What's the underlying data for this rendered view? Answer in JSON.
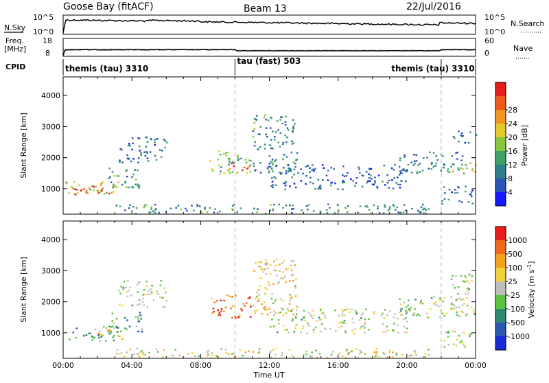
{
  "header": {
    "station": "Goose Bay (fitACF)",
    "beam": "Beam 13",
    "date": "22/Jul/2016"
  },
  "noise_panel": {
    "left_label": "N.Sky",
    "left_ticks": [
      "10^5",
      "10^0"
    ],
    "right_ticks": [
      "10^5",
      "10^0"
    ],
    "right_label": "N.Search"
  },
  "freq_panel": {
    "left_label_line1": "Freq.",
    "left_label_line2": "[MHz]",
    "left_ticks": [
      "18",
      "8"
    ],
    "right_ticks": [
      "60",
      "0"
    ],
    "right_label": "Nave"
  },
  "cpid_panel": {
    "label": "CPID",
    "segments": [
      {
        "text": "themis (tau) 3310",
        "start_h": 0,
        "end_h": 10
      },
      {
        "text": "tau (fast) 503",
        "start_h": 10,
        "end_h": 22
      },
      {
        "text": "themis (tau) 3310",
        "start_h": 22,
        "end_h": 24
      }
    ]
  },
  "x_axis": {
    "label": "Time UT",
    "ticks": [
      "00:00",
      "04:00",
      "08:00",
      "12:00",
      "16:00",
      "20:00",
      "00:00"
    ]
  },
  "chart_data": [
    {
      "type": "heatmap",
      "title": "Power",
      "ylabel": "Slant Range [km]",
      "xlabel": "",
      "xlim": [
        0,
        24
      ],
      "ylim": [
        180,
        4600
      ],
      "yticks": [
        "1000",
        "2000",
        "3000",
        "4000"
      ],
      "colorbar": {
        "label": "Power [dB]",
        "tick_labels": [
          "4",
          "8",
          "12",
          "16",
          "20",
          "24",
          "28"
        ],
        "colors": [
          "#1418ff",
          "#2a55b4",
          "#2e7f88",
          "#3fa06a",
          "#8ac63d",
          "#e6c82e",
          "#f29422",
          "#ee5a1c",
          "#e71c1c"
        ]
      },
      "regions": [
        {
          "t0": 0.1,
          "t1": 3.2,
          "r0": 750,
          "r1": 1250,
          "level": 0.55
        },
        {
          "t0": 0.5,
          "t1": 2.8,
          "r0": 800,
          "r1": 1100,
          "level": 0.85
        },
        {
          "t0": 2.6,
          "t1": 4.6,
          "r0": 1050,
          "r1": 1700,
          "level": 0.35
        },
        {
          "t0": 3.2,
          "t1": 6.0,
          "r0": 1850,
          "r1": 2700,
          "level": 0.25
        },
        {
          "t0": 8.5,
          "t1": 11.0,
          "r0": 1500,
          "r1": 2250,
          "level": 0.45
        },
        {
          "t0": 9.3,
          "t1": 10.9,
          "r0": 1600,
          "r1": 1850,
          "level": 0.8
        },
        {
          "t0": 11.0,
          "t1": 13.6,
          "r0": 1500,
          "r1": 3400,
          "level": 0.3
        },
        {
          "t0": 12.0,
          "t1": 20.0,
          "r0": 1000,
          "r1": 1800,
          "level": 0.2
        },
        {
          "t0": 19.5,
          "t1": 23.5,
          "r0": 1500,
          "r1": 2200,
          "level": 0.3
        },
        {
          "t0": 22.5,
          "t1": 24.0,
          "r0": 1550,
          "r1": 1850,
          "level": 0.55
        },
        {
          "t0": 22.6,
          "t1": 24.0,
          "r0": 2500,
          "r1": 2900,
          "level": 0.25
        },
        {
          "t0": 22.0,
          "t1": 23.8,
          "r0": 500,
          "r1": 1100,
          "level": 0.25
        },
        {
          "t0": 3.0,
          "t1": 21.5,
          "r0": 220,
          "r1": 520,
          "level": 0.3
        }
      ]
    },
    {
      "type": "heatmap",
      "title": "Velocity",
      "ylabel": "Slant Range [km]",
      "xlabel": "Time UT",
      "xlim": [
        0,
        24
      ],
      "ylim": [
        180,
        4600
      ],
      "yticks": [
        "1000",
        "2000",
        "3000",
        "4000"
      ],
      "colorbar": {
        "label": "Velocity [m s^-1]",
        "tick_labels": [
          "1000",
          "500",
          "100",
          "25",
          "-25",
          "-100",
          "-500",
          "-1000"
        ],
        "colors": [
          "#1a2ad6",
          "#2c58b0",
          "#2e8a6e",
          "#5cc440",
          "#bdbdbd",
          "#f2d23a",
          "#f2a01e",
          "#ee6a1c",
          "#e71c1c"
        ]
      },
      "regions": [
        {
          "t0": 0.1,
          "t1": 3.2,
          "r0": 750,
          "r1": 1250,
          "level": 0.3
        },
        {
          "t0": 2.0,
          "t1": 3.5,
          "r0": 800,
          "r1": 1200,
          "level": 0.65
        },
        {
          "t0": 2.6,
          "t1": 4.6,
          "r0": 1050,
          "r1": 1700,
          "level": 0.3
        },
        {
          "t0": 3.2,
          "t1": 6.0,
          "r0": 1850,
          "r1": 2700,
          "level": 0.48
        },
        {
          "t0": 8.5,
          "t1": 11.0,
          "r0": 1500,
          "r1": 2250,
          "level": 0.8
        },
        {
          "t0": 11.0,
          "t1": 13.6,
          "r0": 1500,
          "r1": 3400,
          "level": 0.6
        },
        {
          "t0": 12.0,
          "t1": 20.0,
          "r0": 1000,
          "r1": 1800,
          "level": 0.48
        },
        {
          "t0": 19.5,
          "t1": 23.5,
          "r0": 1500,
          "r1": 2200,
          "level": 0.48
        },
        {
          "t0": 22.5,
          "t1": 24.0,
          "r0": 1550,
          "r1": 2900,
          "level": 0.48
        },
        {
          "t0": 22.0,
          "t1": 23.8,
          "r0": 500,
          "r1": 1100,
          "level": 0.48
        },
        {
          "t0": 3.0,
          "t1": 21.5,
          "r0": 220,
          "r1": 520,
          "level": 0.55
        }
      ]
    }
  ]
}
